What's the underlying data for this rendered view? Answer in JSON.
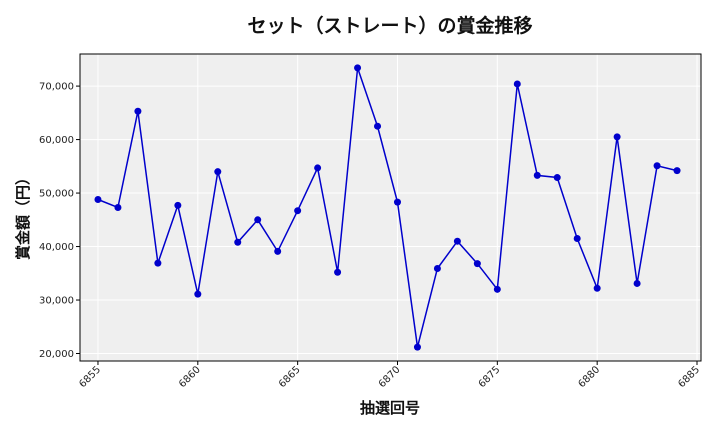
{
  "chart_data": {
    "type": "line",
    "title": "セット（ストレート）の賞金推移",
    "xlabel": "抽選回号",
    "ylabel": "賞金額（円）",
    "x": [
      6855,
      6856,
      6857,
      6858,
      6859,
      6860,
      6861,
      6862,
      6863,
      6864,
      6865,
      6866,
      6867,
      6868,
      6869,
      6870,
      6871,
      6872,
      6873,
      6874,
      6875,
      6876,
      6877,
      6878,
      6879,
      6880,
      6881,
      6882,
      6883,
      6884
    ],
    "y": [
      48800,
      47300,
      65300,
      36900,
      47700,
      31100,
      54000,
      40800,
      45000,
      39100,
      46700,
      54700,
      35200,
      73400,
      62500,
      48300,
      21200,
      35900,
      41000,
      36800,
      32000,
      70400,
      53300,
      52900,
      41500,
      32200,
      60500,
      33100,
      55100,
      54200
    ],
    "xlim": [
      6854.1,
      6885.2
    ],
    "ylim": [
      18600,
      76000
    ],
    "xticks": [
      6855,
      6860,
      6865,
      6870,
      6875,
      6880,
      6885
    ],
    "yticks": [
      20000,
      30000,
      40000,
      50000,
      60000,
      70000
    ],
    "xtick_labels": [
      "6855",
      "6860",
      "6865",
      "6870",
      "6875",
      "6880",
      "6885"
    ],
    "ytick_labels": [
      "20,000",
      "30,000",
      "40,000",
      "50,000",
      "60,000",
      "70,000"
    ],
    "grid": true,
    "line_color": "#0000cc",
    "marker_color": "#0000cc",
    "background_color": "#efefef"
  }
}
